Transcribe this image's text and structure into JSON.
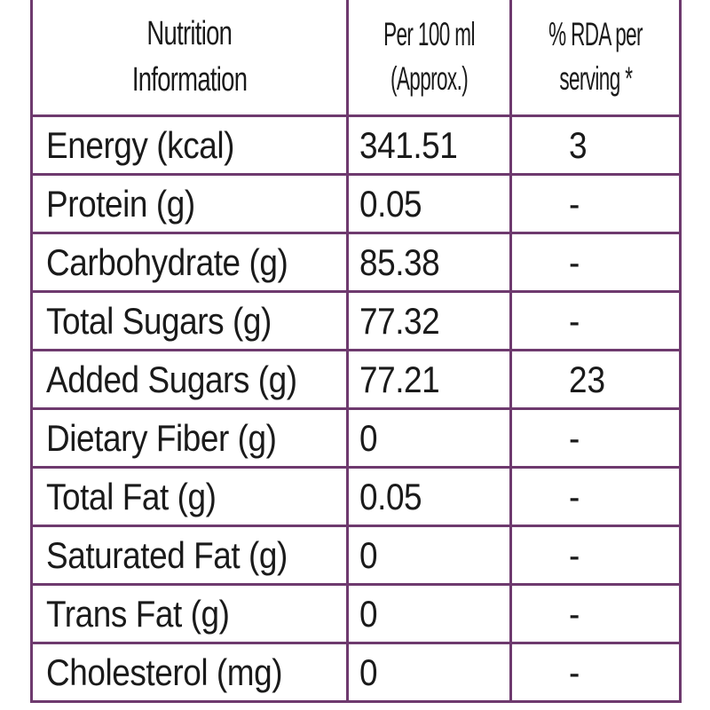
{
  "table": {
    "headers": {
      "nutrient_line1": "Nutrition",
      "nutrient_line2": "Information",
      "per100_line1": "Per 100 ml",
      "per100_line2": "(Approx.)",
      "rda_line1": "% RDA per",
      "rda_line2": "serving *"
    },
    "rows": [
      {
        "nutrient": "Energy (kcal)",
        "value": "341.51",
        "rda": "3"
      },
      {
        "nutrient": "Protein (g)",
        "value": "0.05",
        "rda": "-"
      },
      {
        "nutrient": "Carbohydrate (g)",
        "value": "85.38",
        "rda": "-"
      },
      {
        "nutrient": "Total Sugars (g)",
        "value": "77.32",
        "rda": "-"
      },
      {
        "nutrient": "Added Sugars (g)",
        "value": "77.21",
        "rda": "23"
      },
      {
        "nutrient": "Dietary Fiber (g)",
        "value": "0",
        "rda": "-"
      },
      {
        "nutrient": "Total Fat (g)",
        "value": "0.05",
        "rda": "-"
      },
      {
        "nutrient": "Saturated Fat (g)",
        "value": "0",
        "rda": "-"
      },
      {
        "nutrient": "Trans Fat (g)",
        "value": "0",
        "rda": "-"
      },
      {
        "nutrient": "Cholesterol (mg)",
        "value": "0",
        "rda": "-"
      }
    ]
  },
  "colors": {
    "border": "#6e3a6e",
    "text": "#1a1a1a",
    "background": "#ffffff"
  }
}
